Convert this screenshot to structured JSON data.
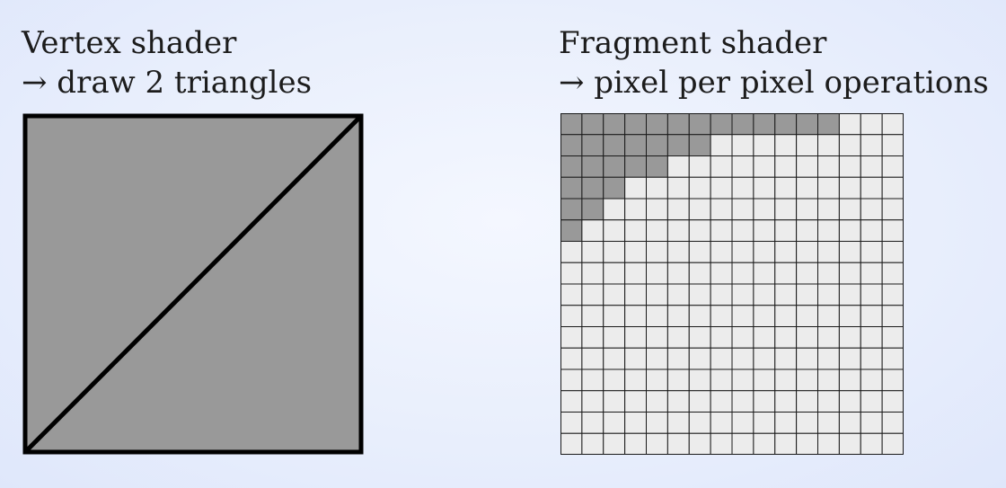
{
  "vertex_panel": {
    "title": "Vertex shader",
    "subtitle": "→ draw 2 triangles"
  },
  "fragment_panel": {
    "title": "Fragment shader",
    "subtitle": "→ pixel per pixel operations"
  },
  "pixel_grid": {
    "columns": 16,
    "rows": 16,
    "dark_cells_per_row": [
      13,
      7,
      5,
      3,
      2,
      1,
      0,
      0,
      0,
      0,
      0,
      0,
      0,
      0,
      0,
      0
    ]
  },
  "colors": {
    "quad_fill": "#999999",
    "outline": "#000000",
    "cell_dark": "#999999",
    "cell_light": "#ececec",
    "grid_line": "#1a1a1a"
  }
}
